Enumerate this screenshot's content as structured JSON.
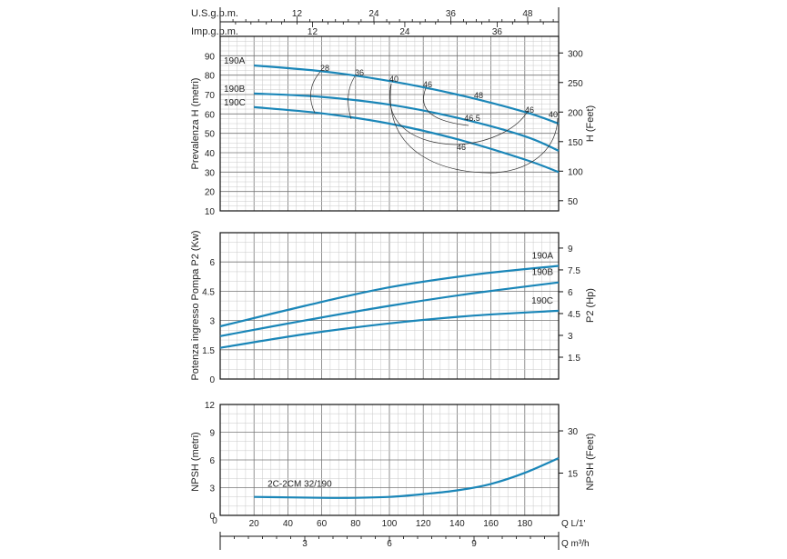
{
  "chart_data": [
    {
      "type": "line",
      "title": "",
      "ylabel": "Prevalenza H (metri)",
      "y2label": "H (Feet)",
      "top_axis_1": {
        "label": "U.S.g.p.m.",
        "ticks": [
          "12",
          "24",
          "36",
          "48"
        ]
      },
      "top_axis_2": {
        "label": "Imp.g.p.m.",
        "ticks": [
          "12",
          "24",
          "36"
        ]
      },
      "xlim": [
        0,
        200
      ],
      "ylim": [
        10,
        100
      ],
      "yticks": [
        "90",
        "80",
        "70",
        "60",
        "50",
        "40",
        "30",
        "20",
        "10"
      ],
      "y2ticks": [
        "300",
        "250",
        "200",
        "150",
        "100",
        "50"
      ],
      "series": [
        {
          "name": "190A",
          "x": [
            20,
            60,
            100,
            140,
            180,
            200
          ],
          "values": [
            85,
            82,
            77,
            70,
            61,
            55
          ]
        },
        {
          "name": "190B",
          "x": [
            20,
            60,
            100,
            140,
            180,
            200
          ],
          "values": [
            70.5,
            68.8,
            64.8,
            58,
            48.5,
            41
          ]
        },
        {
          "name": "190C",
          "x": [
            20,
            60,
            100,
            140,
            180,
            200
          ],
          "values": [
            63.5,
            60.3,
            55,
            47,
            36.5,
            30
          ]
        }
      ],
      "iso_labels": [
        "28",
        "36",
        "40",
        "46",
        "48",
        "46",
        "46.5",
        "46",
        "40"
      ]
    },
    {
      "type": "line",
      "ylabel": "Potenza ingresso Pompa P2 (Kw)",
      "y2label": "P2 (Hp)",
      "xlim": [
        0,
        200
      ],
      "ylim": [
        0,
        7.5
      ],
      "yticks": [
        "6",
        "4.5",
        "3",
        "1.5",
        "0"
      ],
      "y2ticks": [
        "9",
        "7.5",
        "6",
        "4.5",
        "3",
        "1.5"
      ],
      "series": [
        {
          "name": "190A",
          "x": [
            0,
            50,
            100,
            150,
            200
          ],
          "values": [
            2.7,
            3.75,
            4.7,
            5.35,
            5.8
          ]
        },
        {
          "name": "190B",
          "x": [
            0,
            50,
            100,
            150,
            200
          ],
          "values": [
            2.2,
            3.0,
            3.75,
            4.4,
            4.95
          ]
        },
        {
          "name": "190C",
          "x": [
            0,
            50,
            100,
            150,
            200
          ],
          "values": [
            1.6,
            2.3,
            2.85,
            3.25,
            3.5
          ]
        }
      ]
    },
    {
      "type": "line",
      "ylabel": "NPSH (metri)",
      "y2label": "NPSH (Feet)",
      "x_axis_1": {
        "label": "Q L/1'",
        "ticks": [
          "20",
          "40",
          "60",
          "80",
          "100",
          "120",
          "140",
          "160",
          "180"
        ]
      },
      "x_axis_2": {
        "label": "Q m³/h",
        "ticks": [
          "3",
          "6",
          "9"
        ]
      },
      "xlim": [
        0,
        200
      ],
      "ylim": [
        0,
        12
      ],
      "yticks": [
        "12",
        "9",
        "6",
        "3",
        "0"
      ],
      "y2ticks": [
        "30",
        "15"
      ],
      "series": [
        {
          "name": "2C-2CM 32/190",
          "x": [
            20,
            40,
            60,
            80,
            100,
            120,
            140,
            160,
            180,
            200
          ],
          "values": [
            2.0,
            1.95,
            1.9,
            1.9,
            2.0,
            2.3,
            2.7,
            3.4,
            4.6,
            6.2
          ]
        }
      ]
    }
  ]
}
